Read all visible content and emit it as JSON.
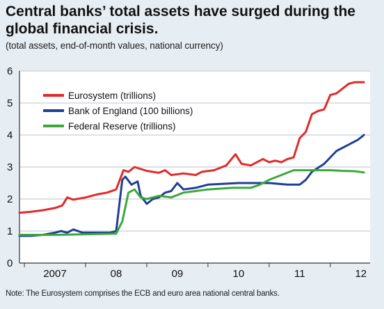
{
  "chart_data": {
    "type": "line",
    "title": "Central banks’ total assets have surged during the global financial crisis.",
    "subtitle": "(total assets, end-of-month values, national currency)",
    "note": "Note: The Eurosystem comprises the ECB and euro area national central banks.",
    "x_tick_labels": [
      "2007",
      "08",
      "09",
      "10",
      "11",
      "12"
    ],
    "y_tick_labels": [
      "0",
      "1",
      "2",
      "3",
      "4",
      "5",
      "6"
    ],
    "ylim": [
      0,
      6
    ],
    "xlim": [
      2006.92,
      2012.65
    ],
    "grid": true,
    "legend_position": "top-left",
    "series": [
      {
        "name": "Eurosystem (trillions)",
        "color": "#e02a2a",
        "points": [
          [
            2006.92,
            1.57
          ],
          [
            2007.1,
            1.6
          ],
          [
            2007.3,
            1.65
          ],
          [
            2007.5,
            1.72
          ],
          [
            2007.62,
            1.8
          ],
          [
            2007.7,
            2.05
          ],
          [
            2007.8,
            1.98
          ],
          [
            2008.0,
            2.05
          ],
          [
            2008.2,
            2.15
          ],
          [
            2008.35,
            2.2
          ],
          [
            2008.5,
            2.3
          ],
          [
            2008.62,
            2.9
          ],
          [
            2008.7,
            2.85
          ],
          [
            2008.8,
            3.0
          ],
          [
            2009.0,
            2.88
          ],
          [
            2009.2,
            2.82
          ],
          [
            2009.3,
            2.9
          ],
          [
            2009.4,
            2.75
          ],
          [
            2009.6,
            2.8
          ],
          [
            2009.8,
            2.75
          ],
          [
            2009.9,
            2.85
          ],
          [
            2010.1,
            2.9
          ],
          [
            2010.3,
            3.05
          ],
          [
            2010.45,
            3.4
          ],
          [
            2010.55,
            3.1
          ],
          [
            2010.7,
            3.05
          ],
          [
            2010.8,
            3.15
          ],
          [
            2010.9,
            3.25
          ],
          [
            2011.0,
            3.15
          ],
          [
            2011.1,
            3.2
          ],
          [
            2011.2,
            3.15
          ],
          [
            2011.3,
            3.25
          ],
          [
            2011.4,
            3.3
          ],
          [
            2011.5,
            3.9
          ],
          [
            2011.6,
            4.1
          ],
          [
            2011.7,
            4.65
          ],
          [
            2011.8,
            4.75
          ],
          [
            2011.9,
            4.8
          ],
          [
            2012.0,
            5.25
          ],
          [
            2012.1,
            5.3
          ],
          [
            2012.2,
            5.45
          ],
          [
            2012.3,
            5.6
          ],
          [
            2012.4,
            5.65
          ],
          [
            2012.55,
            5.65
          ]
        ]
      },
      {
        "name": "Bank of England (100 billions)",
        "color": "#1f3f94",
        "points": [
          [
            2006.92,
            0.85
          ],
          [
            2007.1,
            0.85
          ],
          [
            2007.3,
            0.88
          ],
          [
            2007.5,
            0.95
          ],
          [
            2007.6,
            1.0
          ],
          [
            2007.7,
            0.95
          ],
          [
            2007.8,
            1.05
          ],
          [
            2007.95,
            0.95
          ],
          [
            2008.2,
            0.95
          ],
          [
            2008.4,
            0.95
          ],
          [
            2008.5,
            1.0
          ],
          [
            2008.6,
            2.6
          ],
          [
            2008.65,
            2.7
          ],
          [
            2008.75,
            2.45
          ],
          [
            2008.85,
            2.55
          ],
          [
            2008.9,
            2.1
          ],
          [
            2009.0,
            1.85
          ],
          [
            2009.1,
            2.0
          ],
          [
            2009.2,
            2.05
          ],
          [
            2009.3,
            2.2
          ],
          [
            2009.4,
            2.25
          ],
          [
            2009.5,
            2.5
          ],
          [
            2009.6,
            2.3
          ],
          [
            2009.8,
            2.35
          ],
          [
            2010.0,
            2.45
          ],
          [
            2010.5,
            2.5
          ],
          [
            2011.0,
            2.5
          ],
          [
            2011.3,
            2.45
          ],
          [
            2011.5,
            2.45
          ],
          [
            2011.6,
            2.6
          ],
          [
            2011.7,
            2.85
          ],
          [
            2011.9,
            3.1
          ],
          [
            2012.1,
            3.5
          ],
          [
            2012.3,
            3.7
          ],
          [
            2012.45,
            3.85
          ],
          [
            2012.55,
            4.0
          ]
        ]
      },
      {
        "name": "Federal Reserve (trillions)",
        "color": "#3ca83c",
        "points": [
          [
            2006.92,
            0.88
          ],
          [
            2007.5,
            0.88
          ],
          [
            2008.0,
            0.9
          ],
          [
            2008.5,
            0.92
          ],
          [
            2008.6,
            1.3
          ],
          [
            2008.7,
            2.2
          ],
          [
            2008.8,
            2.3
          ],
          [
            2008.9,
            2.05
          ],
          [
            2009.0,
            2.0
          ],
          [
            2009.1,
            2.05
          ],
          [
            2009.2,
            2.1
          ],
          [
            2009.4,
            2.05
          ],
          [
            2009.6,
            2.2
          ],
          [
            2009.8,
            2.25
          ],
          [
            2010.0,
            2.3
          ],
          [
            2010.4,
            2.35
          ],
          [
            2010.7,
            2.35
          ],
          [
            2010.85,
            2.45
          ],
          [
            2011.0,
            2.6
          ],
          [
            2011.2,
            2.75
          ],
          [
            2011.4,
            2.9
          ],
          [
            2011.6,
            2.9
          ],
          [
            2011.8,
            2.9
          ],
          [
            2012.0,
            2.9
          ],
          [
            2012.2,
            2.88
          ],
          [
            2012.4,
            2.87
          ],
          [
            2012.55,
            2.83
          ]
        ]
      }
    ]
  }
}
